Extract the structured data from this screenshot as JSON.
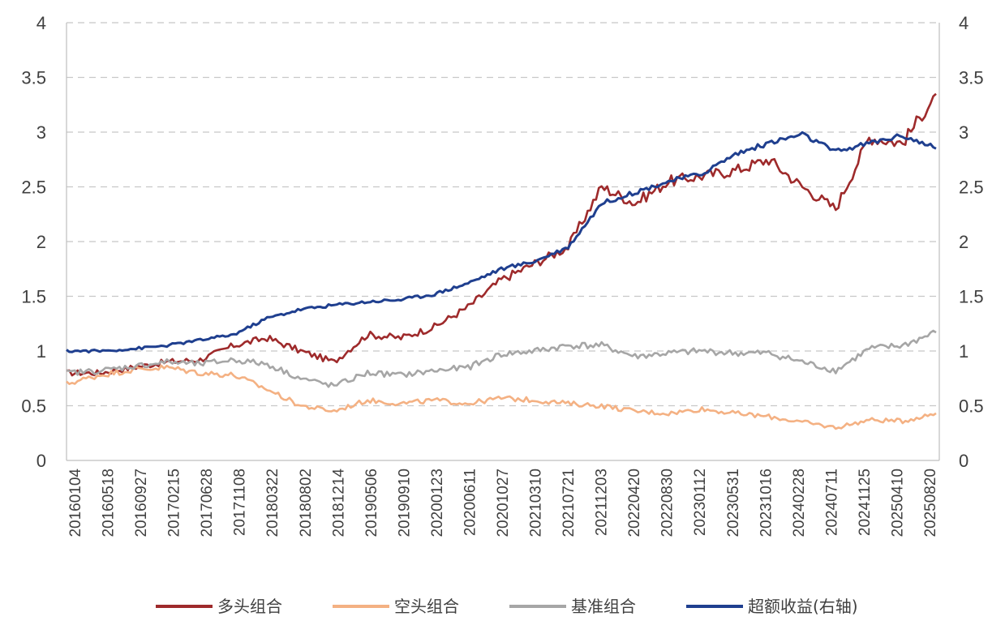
{
  "chart_data": {
    "type": "line",
    "title": "",
    "xlabel": "",
    "ylabel": "",
    "grid": true,
    "legend_position": "bottom",
    "ylim_left": [
      0,
      4
    ],
    "ylim_right": [
      0,
      4
    ],
    "yticks_left": [
      "0",
      "0.5",
      "1",
      "1.5",
      "2",
      "2.5",
      "3",
      "3.5",
      "4"
    ],
    "yticks_right": [
      "0",
      "0.5",
      "1",
      "1.5",
      "2",
      "2.5",
      "3",
      "3.5",
      "4"
    ],
    "x_tick_labels": [
      "20160104",
      "20160518",
      "20160927",
      "20170215",
      "20170628",
      "20171108",
      "20180322",
      "20180802",
      "20181214",
      "20190506",
      "20190910",
      "20200123",
      "20200611",
      "20201027",
      "20210310",
      "20210721",
      "20211203",
      "20220420",
      "20220830",
      "20230112",
      "20230531",
      "20231016",
      "20240228",
      "20240711",
      "20241125",
      "20250410",
      "20250820"
    ],
    "x": [
      "20160104",
      "20160518",
      "20160927",
      "20170215",
      "20170628",
      "20171108",
      "20180322",
      "20180802",
      "20181214",
      "20190506",
      "20190910",
      "20200123",
      "20200611",
      "20201027",
      "20210310",
      "20210721",
      "20211203",
      "20220420",
      "20220830",
      "20230112",
      "20230531",
      "20231016",
      "20240228",
      "20240711",
      "20241125",
      "20250410",
      "20250820"
    ],
    "series": [
      {
        "name": "多头组合",
        "color": "#9e2a2b",
        "axis": "left",
        "values": [
          0.8,
          0.8,
          0.85,
          0.9,
          0.92,
          1.05,
          1.12,
          1.0,
          0.9,
          1.15,
          1.12,
          1.22,
          1.4,
          1.65,
          1.8,
          1.95,
          2.5,
          2.35,
          2.55,
          2.6,
          2.65,
          2.75,
          2.5,
          2.3,
          2.95,
          2.9,
          3.35
        ]
      },
      {
        "name": "空头组合",
        "color": "#f4b183",
        "axis": "left",
        "values": [
          0.7,
          0.78,
          0.83,
          0.85,
          0.8,
          0.78,
          0.65,
          0.5,
          0.45,
          0.55,
          0.52,
          0.55,
          0.52,
          0.57,
          0.55,
          0.52,
          0.5,
          0.45,
          0.43,
          0.47,
          0.43,
          0.4,
          0.35,
          0.3,
          0.37,
          0.36,
          0.43
        ]
      },
      {
        "name": "基准组合",
        "color": "#a6a6a6",
        "axis": "left",
        "values": [
          0.8,
          0.82,
          0.86,
          0.9,
          0.88,
          0.92,
          0.88,
          0.75,
          0.68,
          0.8,
          0.78,
          0.82,
          0.85,
          0.97,
          1.0,
          1.05,
          1.05,
          0.95,
          0.98,
          1.0,
          0.98,
          0.98,
          0.9,
          0.82,
          1.02,
          1.05,
          1.17
        ]
      },
      {
        "name": "超额收益(右轴)",
        "color": "#1f3f8f",
        "axis": "right",
        "values": [
          1.0,
          1.0,
          1.02,
          1.05,
          1.1,
          1.15,
          1.3,
          1.38,
          1.42,
          1.45,
          1.47,
          1.52,
          1.62,
          1.75,
          1.82,
          1.95,
          2.35,
          2.45,
          2.55,
          2.62,
          2.8,
          2.9,
          2.98,
          2.82,
          2.9,
          2.97,
          2.85
        ]
      }
    ]
  }
}
